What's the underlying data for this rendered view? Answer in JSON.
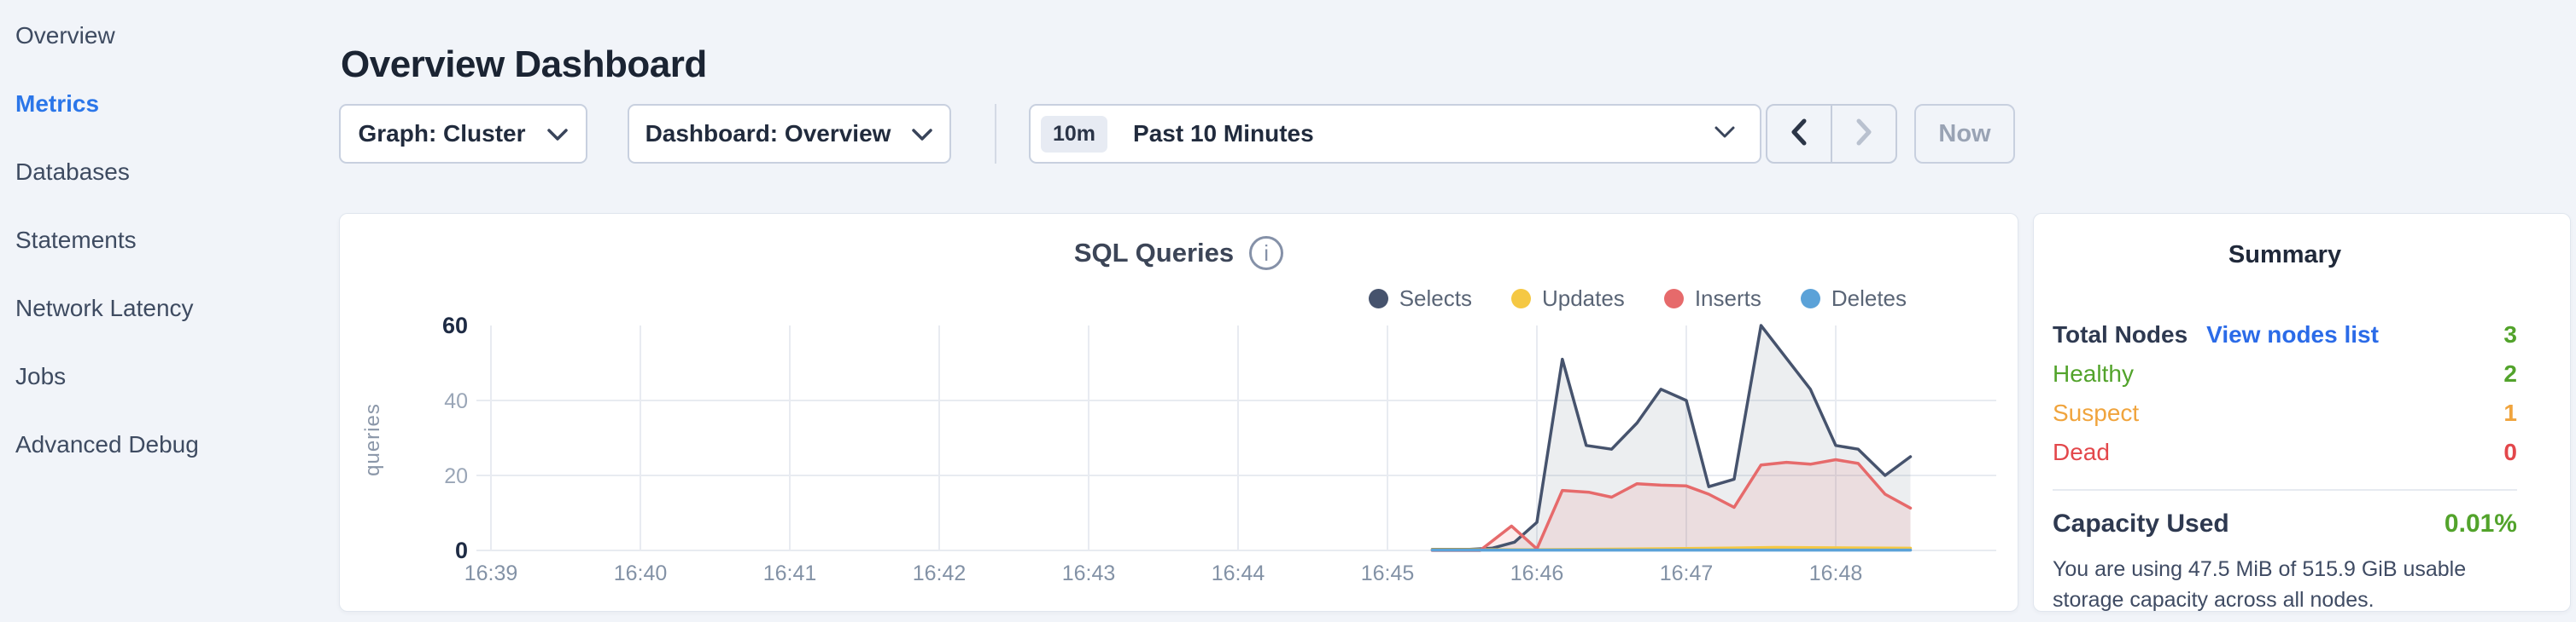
{
  "sidebar": {
    "items": [
      {
        "label": "Overview",
        "active": false
      },
      {
        "label": "Metrics",
        "active": true
      },
      {
        "label": "Databases",
        "active": false
      },
      {
        "label": "Statements",
        "active": false
      },
      {
        "label": "Network Latency",
        "active": false
      },
      {
        "label": "Jobs",
        "active": false
      },
      {
        "label": "Advanced Debug",
        "active": false
      }
    ],
    "active_color": "#2b76e9"
  },
  "header": {
    "title": "Overview Dashboard"
  },
  "controls": {
    "graph_dropdown_label": "Graph: Cluster",
    "dashboard_dropdown_label": "Dashboard: Overview",
    "time_badge": "10m",
    "time_label": "Past 10 Minutes",
    "now_label": "Now"
  },
  "icons": {
    "chevron_down": "chevron-down",
    "chevron_left": "chevron-left",
    "chevron_right": "chevron-right",
    "info": "i"
  },
  "chart_data": {
    "type": "area",
    "title": "SQL Queries",
    "ylabel": "queries",
    "xlabel": "",
    "x_unit": "minutes after 16:39",
    "x_ticks": [
      "16:39",
      "16:40",
      "16:41",
      "16:42",
      "16:43",
      "16:44",
      "16:45",
      "16:46",
      "16:47",
      "16:48"
    ],
    "y_ticks": [
      0,
      20,
      40,
      60
    ],
    "ylim": [
      0,
      60
    ],
    "xlim": [
      -0.1,
      10.05
    ],
    "grid": true,
    "legend_position": "top-right",
    "series": [
      {
        "name": "Selects",
        "color": "#46536d",
        "fill": "rgba(70,85,110,0.10)",
        "points": [
          [
            6.3,
            0.3
          ],
          [
            6.55,
            0.3
          ],
          [
            6.7,
            0.6
          ],
          [
            6.85,
            2.2
          ],
          [
            7.0,
            7.5
          ],
          [
            7.17,
            51
          ],
          [
            7.33,
            28
          ],
          [
            7.5,
            27
          ],
          [
            7.67,
            34
          ],
          [
            7.83,
            43
          ],
          [
            8.0,
            40
          ],
          [
            8.15,
            17
          ],
          [
            8.32,
            19
          ],
          [
            8.5,
            60
          ],
          [
            8.83,
            43
          ],
          [
            9.0,
            28
          ],
          [
            9.15,
            27
          ],
          [
            9.33,
            20
          ],
          [
            9.5,
            25
          ]
        ]
      },
      {
        "name": "Updates",
        "color": "#f5c843",
        "fill": "rgba(245,200,67,0.15)",
        "points": [
          [
            6.3,
            0.2
          ],
          [
            7.0,
            0.2
          ],
          [
            8.0,
            0.5
          ],
          [
            8.6,
            0.8
          ],
          [
            9.5,
            0.6
          ]
        ]
      },
      {
        "name": "Inserts",
        "color": "#e66a6b",
        "fill": "rgba(230,106,107,0.13)",
        "points": [
          [
            6.3,
            0
          ],
          [
            6.62,
            0
          ],
          [
            6.83,
            6.5
          ],
          [
            7.0,
            0.4
          ],
          [
            7.17,
            16
          ],
          [
            7.35,
            15.5
          ],
          [
            7.5,
            14.2
          ],
          [
            7.67,
            17.8
          ],
          [
            7.83,
            17.4
          ],
          [
            8.0,
            17.2
          ],
          [
            8.15,
            15
          ],
          [
            8.32,
            11.5
          ],
          [
            8.5,
            22.8
          ],
          [
            8.67,
            23.5
          ],
          [
            8.83,
            23
          ],
          [
            9.0,
            24.2
          ],
          [
            9.15,
            23.2
          ],
          [
            9.33,
            15
          ],
          [
            9.5,
            11.3
          ]
        ]
      },
      {
        "name": "Deletes",
        "color": "#5ba2d8",
        "fill": "rgba(91,162,216,0.12)",
        "points": [
          [
            6.3,
            0.1
          ],
          [
            9.5,
            0.1
          ]
        ]
      }
    ]
  },
  "summary": {
    "title": "Summary",
    "rows": [
      {
        "label": "Total Nodes",
        "label_color": "#2e3950",
        "link": "View nodes list",
        "value": "3",
        "value_color": "#52a32b"
      },
      {
        "label": "Healthy",
        "label_color": "#52a32b",
        "value": "2",
        "value_color": "#52a32b"
      },
      {
        "label": "Suspect",
        "label_color": "#f0a43d",
        "value": "1",
        "value_color": "#f0a43d"
      },
      {
        "label": "Dead",
        "label_color": "#e3474b",
        "value": "0",
        "value_color": "#e3474b"
      }
    ],
    "capacity": {
      "label": "Capacity Used",
      "value": "0.01%",
      "value_color": "#52a32b",
      "description": "You are using 47.5 MiB of 515.9 GiB usable storage capacity across all nodes."
    }
  }
}
